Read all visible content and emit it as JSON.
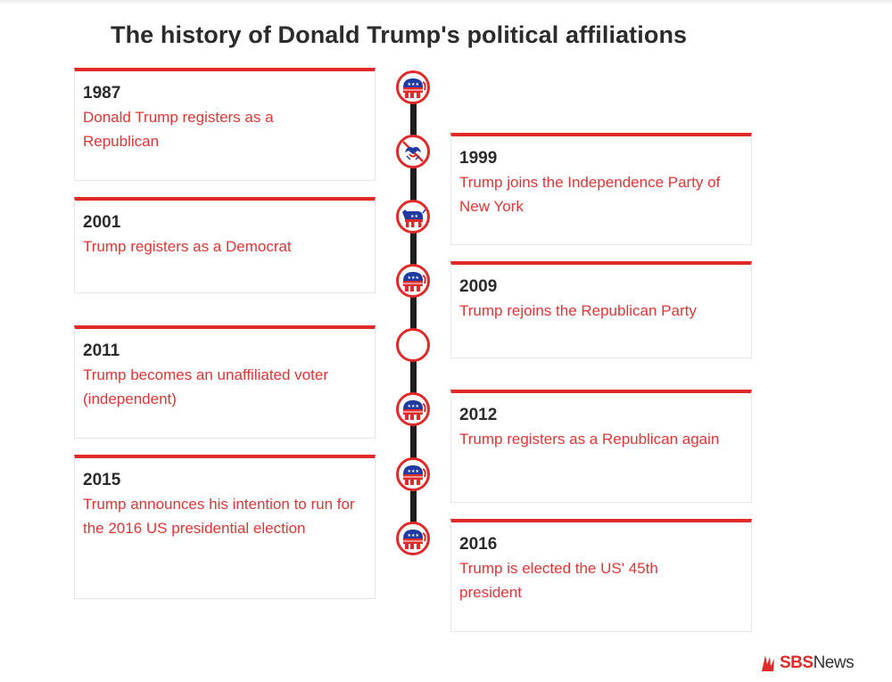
{
  "title": "The history of Donald Trump's political affiliations",
  "colors": {
    "accent_red": "#e02a2a",
    "desc_red": "#e03535",
    "spine": "#1e1e1e",
    "republican_blue": "#1f3aa0"
  },
  "events": [
    {
      "year": "1987",
      "description": "Donald Trump registers as a Republican",
      "icon": "republican-elephant-icon"
    },
    {
      "year": "1999",
      "description": "Trump joins the Independence Party of New York",
      "icon": "independence-eagle-icon"
    },
    {
      "year": "2001",
      "description": "Trump registers as a Democrat",
      "icon": "democrat-donkey-icon"
    },
    {
      "year": "2009",
      "description": "Trump rejoins the Republican Party",
      "icon": "republican-elephant-icon"
    },
    {
      "year": "2011",
      "description": "Trump becomes an unaffiliated voter (independent)",
      "icon": "unaffiliated-circle-icon"
    },
    {
      "year": "2012",
      "description": "Trump registers as a Republican again",
      "icon": "republican-elephant-icon"
    },
    {
      "year": "2015",
      "description": "Trump announces his intention to run for the 2016 US presidential election",
      "icon": "republican-elephant-icon"
    },
    {
      "year": "2016",
      "description": "Trump is elected the US' 45th president",
      "icon": "republican-elephant-icon"
    }
  ],
  "logo": {
    "brand": "SBS",
    "suffix": "News"
  }
}
